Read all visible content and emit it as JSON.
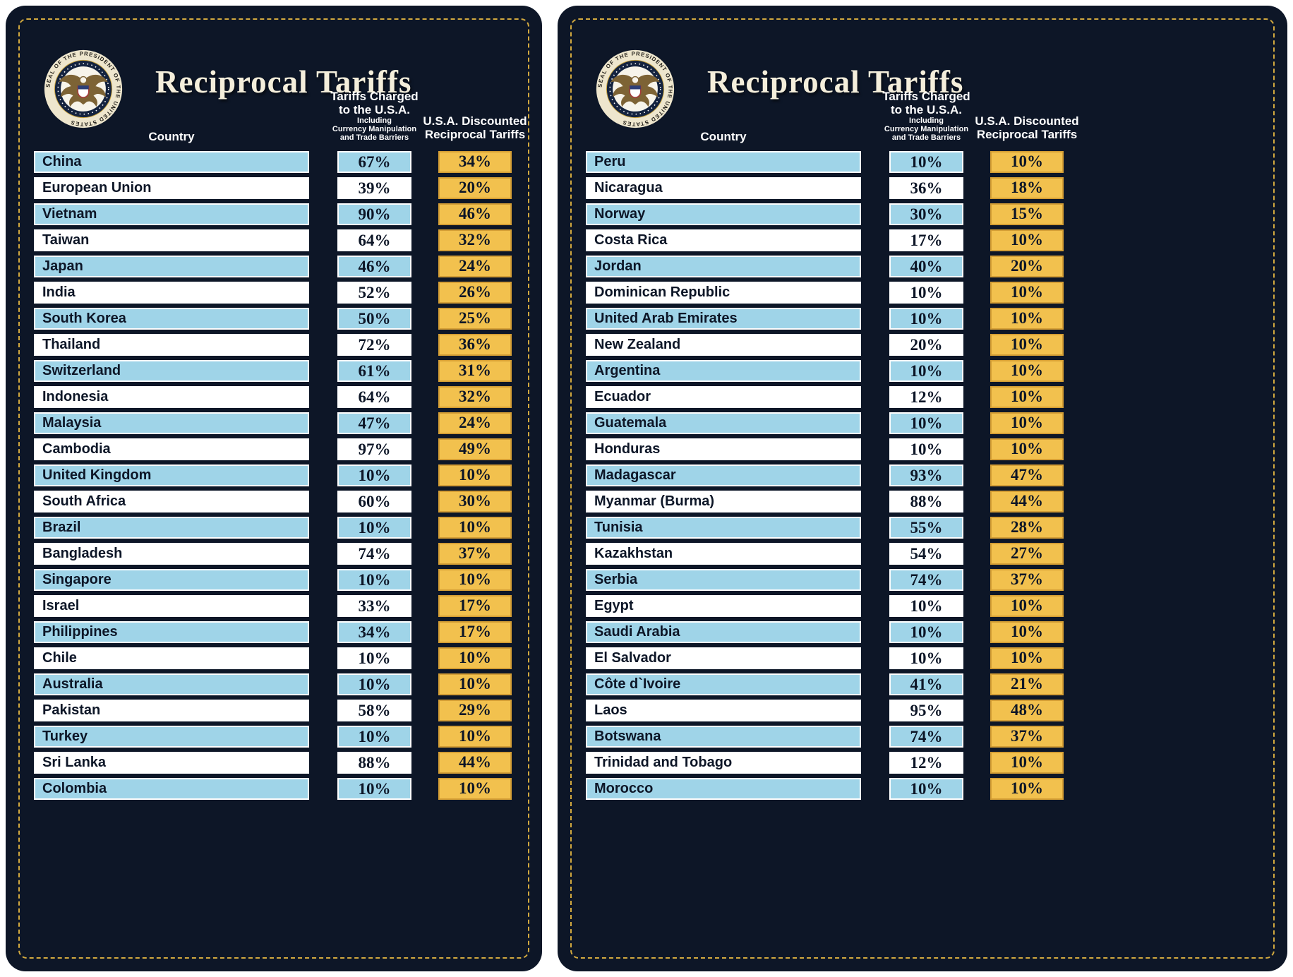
{
  "seal": {
    "ring_text": "SEAL OF THE PRESIDENT OF THE UNITED STATES"
  },
  "headers": {
    "country": "Country",
    "charged_main": [
      "Tariffs Charged",
      "to the U.S.A."
    ],
    "charged_sub": [
      "Including",
      "Currency Manipulation",
      "and Trade Barriers"
    ],
    "discounted": [
      "U.S.A. Discounted",
      "Reciprocal Tariffs"
    ]
  },
  "colors": {
    "page_bg": "#ffffff",
    "card_bg": "#0d1627",
    "dash_gold": "#d2a93f",
    "row_blue": "#9fd4e8",
    "row_white": "#ffffff",
    "gold": "#f2c14e",
    "gold_border": "#d49e35",
    "ink": "#0d1627",
    "cream": "#f4eedb"
  },
  "chart_data": {
    "type": "table",
    "panels": [
      {
        "title": "Reciprocal Tariffs",
        "columns": [
          "Country",
          "Tariffs Charged to the U.S.A. Including Currency Manipulation and Trade Barriers",
          "U.S.A. Discounted Reciprocal Tariffs"
        ],
        "rows": [
          {
            "country": "China",
            "charged": "67%",
            "discounted": "34%"
          },
          {
            "country": "European Union",
            "charged": "39%",
            "discounted": "20%"
          },
          {
            "country": "Vietnam",
            "charged": "90%",
            "discounted": "46%"
          },
          {
            "country": "Taiwan",
            "charged": "64%",
            "discounted": "32%"
          },
          {
            "country": "Japan",
            "charged": "46%",
            "discounted": "24%"
          },
          {
            "country": "India",
            "charged": "52%",
            "discounted": "26%"
          },
          {
            "country": "South Korea",
            "charged": "50%",
            "discounted": "25%"
          },
          {
            "country": "Thailand",
            "charged": "72%",
            "discounted": "36%"
          },
          {
            "country": "Switzerland",
            "charged": "61%",
            "discounted": "31%"
          },
          {
            "country": "Indonesia",
            "charged": "64%",
            "discounted": "32%"
          },
          {
            "country": "Malaysia",
            "charged": "47%",
            "discounted": "24%"
          },
          {
            "country": "Cambodia",
            "charged": "97%",
            "discounted": "49%"
          },
          {
            "country": "United Kingdom",
            "charged": "10%",
            "discounted": "10%"
          },
          {
            "country": "South Africa",
            "charged": "60%",
            "discounted": "30%"
          },
          {
            "country": "Brazil",
            "charged": "10%",
            "discounted": "10%"
          },
          {
            "country": "Bangladesh",
            "charged": "74%",
            "discounted": "37%"
          },
          {
            "country": "Singapore",
            "charged": "10%",
            "discounted": "10%"
          },
          {
            "country": "Israel",
            "charged": "33%",
            "discounted": "17%"
          },
          {
            "country": "Philippines",
            "charged": "34%",
            "discounted": "17%"
          },
          {
            "country": "Chile",
            "charged": "10%",
            "discounted": "10%"
          },
          {
            "country": "Australia",
            "charged": "10%",
            "discounted": "10%"
          },
          {
            "country": "Pakistan",
            "charged": "58%",
            "discounted": "29%"
          },
          {
            "country": "Turkey",
            "charged": "10%",
            "discounted": "10%"
          },
          {
            "country": "Sri Lanka",
            "charged": "88%",
            "discounted": "44%"
          },
          {
            "country": "Colombia",
            "charged": "10%",
            "discounted": "10%"
          }
        ]
      },
      {
        "title": "Reciprocal Tariffs",
        "columns": [
          "Country",
          "Tariffs Charged to the U.S.A. Including Currency Manipulation and Trade Barriers",
          "U.S.A. Discounted Reciprocal Tariffs"
        ],
        "rows": [
          {
            "country": "Peru",
            "charged": "10%",
            "discounted": "10%"
          },
          {
            "country": "Nicaragua",
            "charged": "36%",
            "discounted": "18%"
          },
          {
            "country": "Norway",
            "charged": "30%",
            "discounted": "15%"
          },
          {
            "country": "Costa Rica",
            "charged": "17%",
            "discounted": "10%"
          },
          {
            "country": "Jordan",
            "charged": "40%",
            "discounted": "20%"
          },
          {
            "country": "Dominican Republic",
            "charged": "10%",
            "discounted": "10%"
          },
          {
            "country": "United Arab Emirates",
            "charged": "10%",
            "discounted": "10%"
          },
          {
            "country": "New Zealand",
            "charged": "20%",
            "discounted": "10%"
          },
          {
            "country": "Argentina",
            "charged": "10%",
            "discounted": "10%"
          },
          {
            "country": "Ecuador",
            "charged": "12%",
            "discounted": "10%"
          },
          {
            "country": "Guatemala",
            "charged": "10%",
            "discounted": "10%"
          },
          {
            "country": "Honduras",
            "charged": "10%",
            "discounted": "10%"
          },
          {
            "country": "Madagascar",
            "charged": "93%",
            "discounted": "47%"
          },
          {
            "country": "Myanmar (Burma)",
            "charged": "88%",
            "discounted": "44%"
          },
          {
            "country": "Tunisia",
            "charged": "55%",
            "discounted": "28%"
          },
          {
            "country": "Kazakhstan",
            "charged": "54%",
            "discounted": "27%"
          },
          {
            "country": "Serbia",
            "charged": "74%",
            "discounted": "37%"
          },
          {
            "country": "Egypt",
            "charged": "10%",
            "discounted": "10%"
          },
          {
            "country": "Saudi Arabia",
            "charged": "10%",
            "discounted": "10%"
          },
          {
            "country": "El Salvador",
            "charged": "10%",
            "discounted": "10%"
          },
          {
            "country": "Côte d`Ivoire",
            "charged": "41%",
            "discounted": "21%"
          },
          {
            "country": "Laos",
            "charged": "95%",
            "discounted": "48%"
          },
          {
            "country": "Botswana",
            "charged": "74%",
            "discounted": "37%"
          },
          {
            "country": "Trinidad and Tobago",
            "charged": "12%",
            "discounted": "10%"
          },
          {
            "country": "Morocco",
            "charged": "10%",
            "discounted": "10%"
          }
        ]
      }
    ]
  }
}
